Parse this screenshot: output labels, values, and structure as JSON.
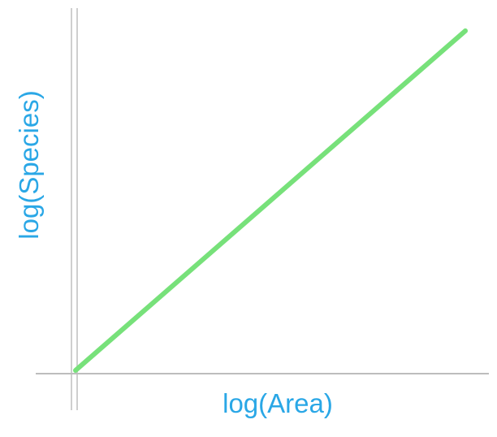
{
  "chart_data": {
    "type": "line",
    "title": "",
    "xlabel": "log(Area)",
    "ylabel": "log(Species)",
    "x": [
      0,
      1
    ],
    "series": [
      {
        "values": [
          0,
          1
        ],
        "color": "#77e17a"
      }
    ],
    "xlim": [
      0,
      1
    ],
    "ylim": [
      0,
      1
    ],
    "grid": false,
    "colors": {
      "axis": "#c8c8c8",
      "label": "#2aa7e6",
      "line": "#77e17a"
    }
  }
}
